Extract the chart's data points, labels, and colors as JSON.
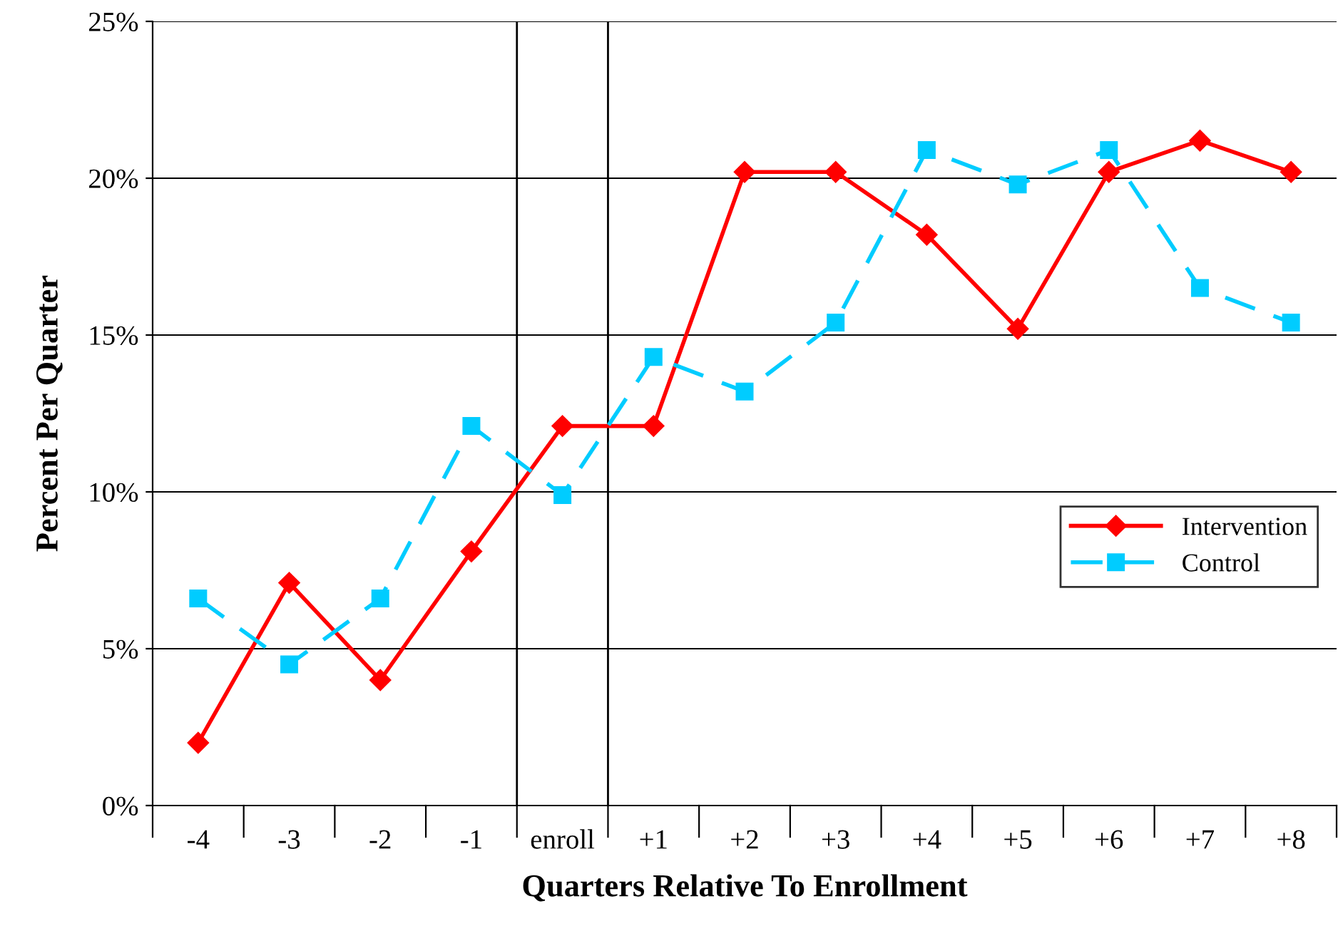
{
  "chart_data": {
    "type": "line",
    "xlabel": "Quarters Relative To Enrollment",
    "ylabel": "Percent Per Quarter",
    "categories": [
      "-4",
      "-3",
      "-2",
      "-1",
      "enroll",
      "+1",
      "+2",
      "+3",
      "+4",
      "+5",
      "+6",
      "+7",
      "+8"
    ],
    "series": [
      {
        "name": "Intervention",
        "color": "#ff0000",
        "marker": "diamond",
        "line_style": "solid",
        "values": [
          2.0,
          7.1,
          4.0,
          8.1,
          12.1,
          12.1,
          20.2,
          20.2,
          18.2,
          15.2,
          20.2,
          21.2,
          20.2
        ]
      },
      {
        "name": "Control",
        "color": "#00ccff",
        "marker": "square",
        "line_style": "dashed",
        "values": [
          6.6,
          4.5,
          6.6,
          12.1,
          9.9,
          14.3,
          13.2,
          15.4,
          20.9,
          19.8,
          20.9,
          16.5,
          15.4
        ]
      }
    ],
    "ylim": [
      0,
      25
    ],
    "yticks": [
      {
        "value": 0,
        "label": "0%"
      },
      {
        "value": 5,
        "label": "5%"
      },
      {
        "value": 10,
        "label": "10%"
      },
      {
        "value": 15,
        "label": "15%"
      },
      {
        "value": 20,
        "label": "20%"
      },
      {
        "value": 25,
        "label": "25%"
      }
    ],
    "grid": "y",
    "legend": "center right"
  }
}
